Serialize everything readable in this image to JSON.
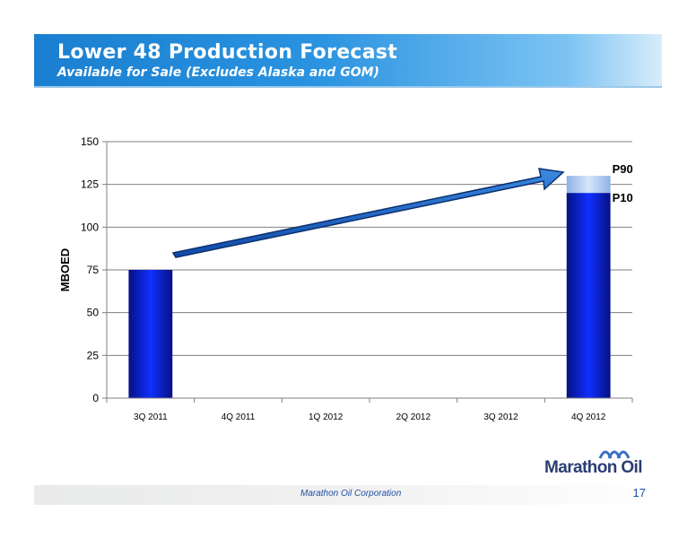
{
  "header": {
    "title": "Lower 48 Production Forecast",
    "subtitle": "Available for Sale (Excludes Alaska and GOM)"
  },
  "chart_data": {
    "type": "bar",
    "categories": [
      "3Q 2011",
      "4Q 2011",
      "1Q 2012",
      "2Q 2012",
      "3Q 2012",
      "4Q 2012"
    ],
    "series": [
      {
        "name": "P10",
        "values": [
          75,
          null,
          null,
          null,
          null,
          120
        ]
      },
      {
        "name": "P90",
        "values": [
          null,
          null,
          null,
          null,
          null,
          130
        ]
      }
    ],
    "ylabel": "MBOED",
    "xlabel": "",
    "ylim": [
      0,
      150
    ],
    "yticks": [
      0,
      25,
      50,
      75,
      100,
      125,
      150
    ],
    "grid": true,
    "annotations": [
      "P90",
      "P10"
    ],
    "colors": {
      "bar": "#0a1fd4",
      "bar_dark": "#061083",
      "p90": "#a9c5ee",
      "arrow": "#1864c4",
      "grid": "#808080"
    }
  },
  "footer": {
    "company": "Marathon Oil Corporation",
    "page_number": "17",
    "logo_text": "Marathon Oil"
  }
}
